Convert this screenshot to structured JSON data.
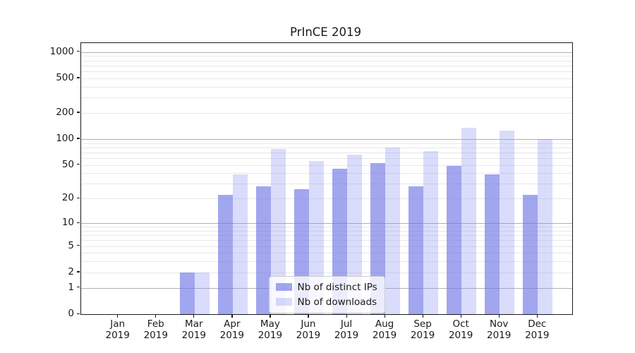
{
  "chart_data": {
    "type": "bar",
    "title": "PrInCE 2019",
    "categories": [
      "Jan 2019",
      "Feb 2019",
      "Mar 2019",
      "Apr 2019",
      "May 2019",
      "Jun 2019",
      "Jul 2019",
      "Aug 2019",
      "Sep 2019",
      "Oct 2019",
      "Nov 2019",
      "Dec 2019"
    ],
    "series": [
      {
        "name": "Nb of distinct IPs",
        "color": "rgba(110,118,231,0.65)",
        "values": [
          0,
          0,
          2,
          22,
          28,
          26,
          45,
          53,
          28,
          49,
          39,
          22
        ]
      },
      {
        "name": "Nb of downloads",
        "color": "rgba(130,140,242,0.30)",
        "values": [
          0,
          0,
          2,
          39,
          77,
          56,
          66,
          79,
          73,
          135,
          125,
          100
        ]
      }
    ],
    "xlabel": "",
    "ylabel": "",
    "yscale": "log1p",
    "ylim": [
      0,
      1275
    ],
    "yticks": [
      0,
      1,
      2,
      5,
      10,
      20,
      50,
      100,
      200,
      500,
      1000
    ],
    "major_gridlines": [
      1,
      10,
      100,
      1000
    ],
    "minor_gridlines": [
      2,
      3,
      4,
      5,
      6,
      7,
      8,
      9,
      20,
      30,
      40,
      50,
      60,
      70,
      80,
      90,
      200,
      300,
      400,
      500,
      600,
      700,
      800,
      900
    ],
    "grid": "on",
    "legend_position": "lower center",
    "colors": {
      "major_grid": "#b0b0b0",
      "minor_grid": "#e8e8e8",
      "axis": "#1a1a1a",
      "background": "#ffffff"
    }
  }
}
